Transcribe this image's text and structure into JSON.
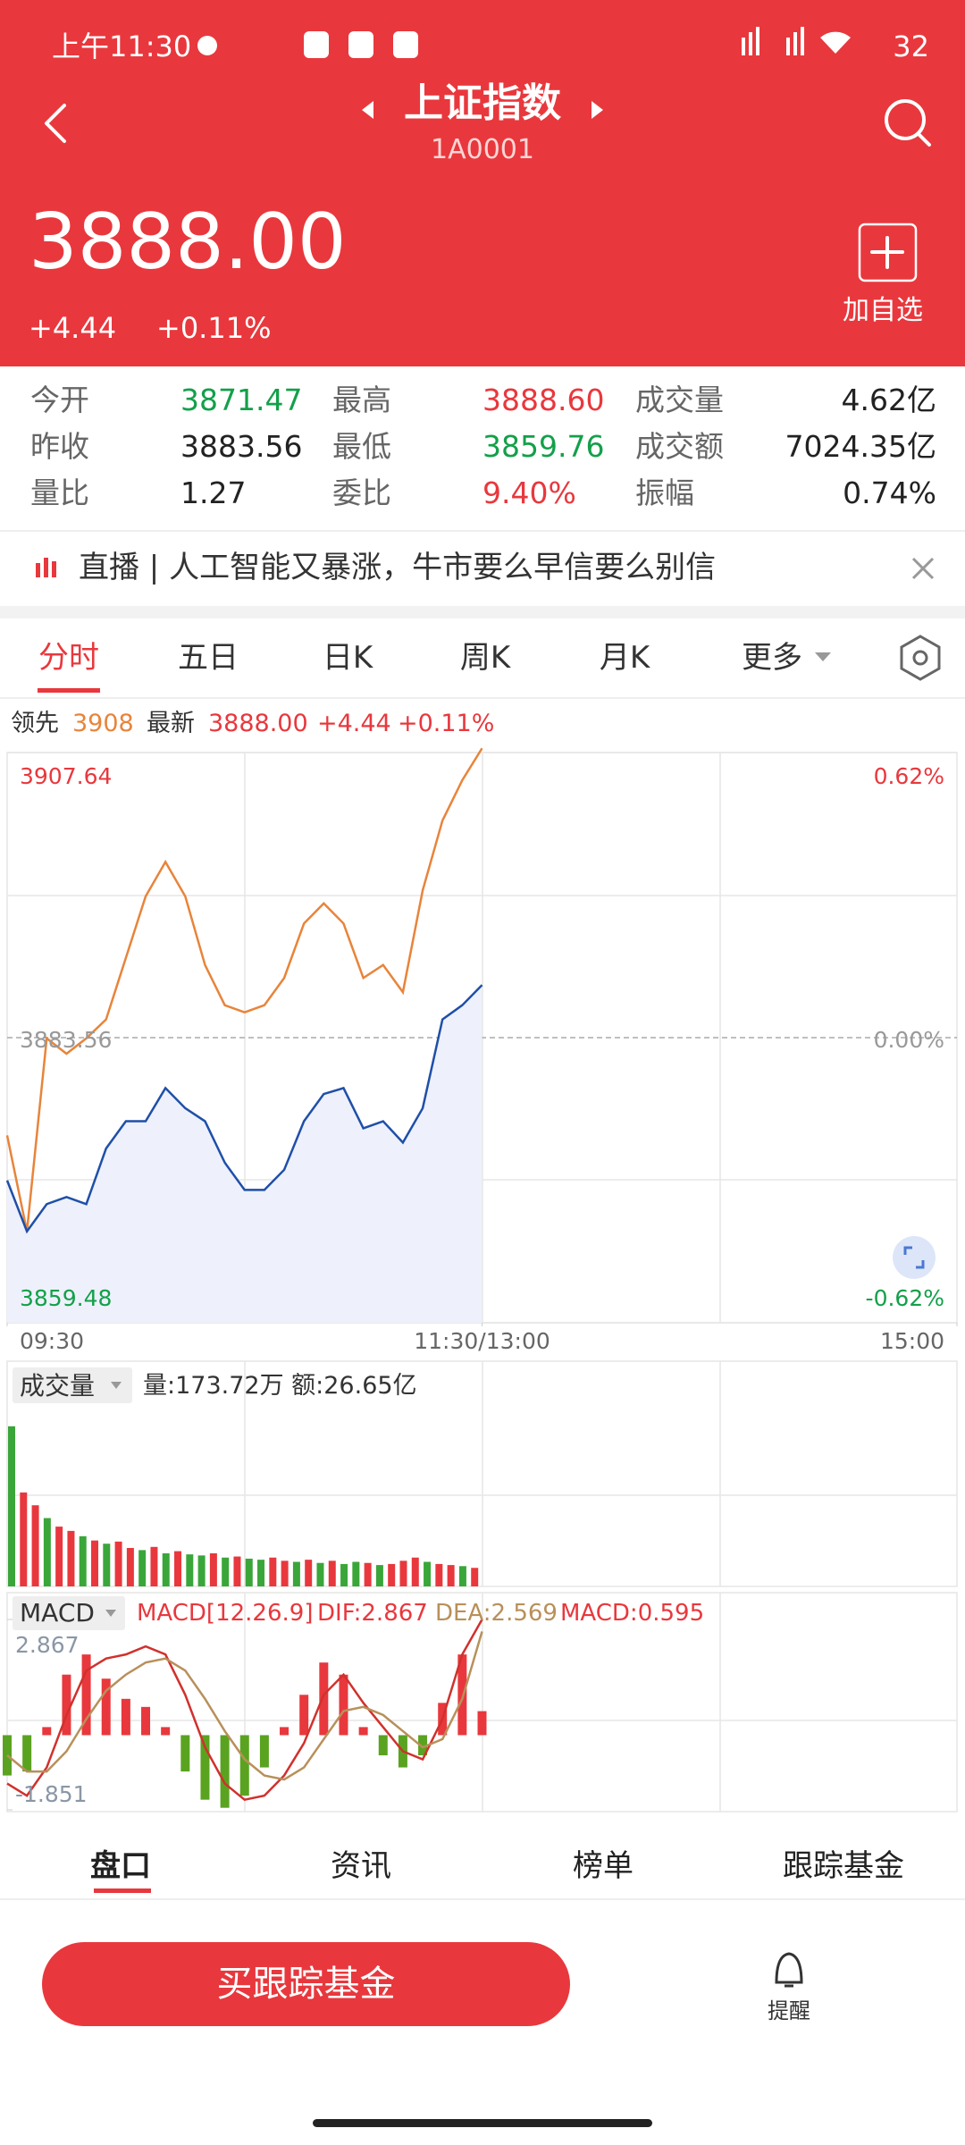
{
  "status_bar": {
    "time": "上午11:30",
    "battery": "32"
  },
  "header": {
    "title": "上证指数",
    "code": "1A0001"
  },
  "quote": {
    "price": "3888.00",
    "change": "+4.44",
    "change_percent": "+0.11%",
    "watch_button": "加自选"
  },
  "stats": [
    [
      "今开",
      "3871.47",
      "最高",
      "3888.60",
      "成交量",
      "4.62亿"
    ],
    [
      "昨收",
      "3883.56",
      "最低",
      "3859.76",
      "成交额",
      "7024.35亿"
    ],
    [
      "量比",
      "1.27",
      "委比",
      "9.40%",
      "振幅",
      "0.74%"
    ]
  ],
  "news": {
    "text": "直播 | 人工智能又暴涨，牛市要么早信要么别信"
  },
  "tabs": [
    "分时",
    "五日",
    "日K",
    "周K",
    "月K",
    "更多"
  ],
  "summary": {
    "leader_value": "3908"
  },
  "volume_panel": {
    "title": "成交量",
    "info": "量:173.72万 额:26.65亿"
  },
  "macd_panel": {
    "title": "MACD",
    "params": "MACD[12.26.9]",
    "dif": "DIF:2.867",
    "dea": "DEA:2.569",
    "macd": "MACD:0.595"
  },
  "chart_data": [
    {
      "type": "line",
      "xlim": [
        0,
        240
      ],
      "xticks": [
        {
          "value": 0,
          "label": "09:30"
        },
        {
          "value": 120,
          "label": "11:30/13:00"
        },
        {
          "value": 240,
          "label": "15:00"
        }
      ],
      "ylim": [
        3859.48,
        3907.64
      ],
      "yticks": [
        3859.48,
        3883.56,
        3907.64
      ],
      "y2lim": [
        -0.62,
        0.62
      ],
      "y2ticks": [
        {
          "value": -0.62,
          "label": "-0.62%"
        },
        {
          "value": 0,
          "label": "0.00%"
        },
        {
          "value": 0.62,
          "label": "0.62%"
        }
      ],
      "x": [
        0,
        5,
        10,
        15,
        20,
        25,
        30,
        35,
        40,
        45,
        50,
        55,
        60,
        65,
        70,
        75,
        80,
        85,
        90,
        95,
        100,
        105,
        110,
        115,
        120
      ],
      "series": [
        {
          "name": "领先",
          "color": "#e8843a",
          "values": [
            3875.3,
            3867.2,
            3883.5,
            3882.2,
            3883.5,
            3885.1,
            3890.3,
            3895.5,
            3898.4,
            3895.5,
            3889.7,
            3886.3,
            3885.7,
            3886.3,
            3888.6,
            3893.2,
            3894.9,
            3893.2,
            3888.6,
            3889.7,
            3887.4,
            3896.0,
            3901.9,
            3905.3,
            3908.0
          ]
        },
        {
          "name": "最新",
          "color": "#1f4fa8",
          "area_color": "#eef1fb",
          "values": [
            3871.5,
            3867.2,
            3869.5,
            3870.1,
            3869.5,
            3874.2,
            3876.5,
            3876.5,
            3879.3,
            3877.6,
            3876.5,
            3873.0,
            3870.7,
            3870.7,
            3872.4,
            3876.5,
            3878.8,
            3879.3,
            3875.9,
            3876.5,
            3874.7,
            3877.6,
            3885.1,
            3886.3,
            3888.0
          ]
        }
      ]
    },
    {
      "type": "bar",
      "xlim": [
        0,
        240
      ],
      "ylim": [
        0,
        1800
      ],
      "x": [
        0,
        3,
        6,
        9,
        12,
        15,
        18,
        21,
        24,
        27,
        30,
        33,
        36,
        39,
        42,
        45,
        48,
        51,
        54,
        57,
        60,
        63,
        66,
        69,
        72,
        75,
        78,
        81,
        84,
        87,
        90,
        93,
        96,
        99,
        102,
        105,
        108,
        111,
        114,
        117
      ],
      "values": [
        1500,
        880,
        760,
        640,
        560,
        520,
        470,
        430,
        400,
        420,
        360,
        340,
        370,
        310,
        330,
        300,
        290,
        310,
        270,
        280,
        260,
        250,
        270,
        240,
        230,
        250,
        220,
        240,
        210,
        230,
        220,
        200,
        210,
        240,
        270,
        230,
        210,
        200,
        190,
        173.72
      ],
      "colors": [
        "#3aa63a",
        "#e8383d",
        "#e8383d",
        "#3aa63a",
        "#e8383d",
        "#e8383d",
        "#3aa63a",
        "#e8383d",
        "#3aa63a",
        "#e8383d",
        "#e8383d",
        "#3aa63a",
        "#e8383d",
        "#3aa63a",
        "#e8383d",
        "#3aa63a",
        "#3aa63a",
        "#e8383d",
        "#3aa63a",
        "#e8383d",
        "#3aa63a",
        "#3aa63a",
        "#e8383d",
        "#e8383d",
        "#3aa63a",
        "#e8383d",
        "#3aa63a",
        "#e8383d",
        "#3aa63a",
        "#3aa63a",
        "#e8383d",
        "#3aa63a",
        "#e8383d",
        "#e8383d",
        "#e8383d",
        "#3aa63a",
        "#e8383d",
        "#e8383d",
        "#3aa63a",
        "#e8383d"
      ]
    },
    {
      "type": "macd",
      "xlim": [
        0,
        240
      ],
      "ylim": [
        -1.851,
        2.867
      ],
      "yticks": [
        -1.851,
        2.867
      ],
      "up_color": "#e8383d",
      "down_color": "#5aa320",
      "x": [
        0,
        5,
        10,
        15,
        20,
        25,
        30,
        35,
        40,
        45,
        50,
        55,
        60,
        65,
        70,
        75,
        80,
        85,
        90,
        95,
        100,
        105,
        110,
        115,
        120
      ],
      "histogram": [
        -1.0,
        -0.9,
        0.2,
        1.5,
        2.0,
        1.4,
        0.9,
        0.7,
        0.2,
        -0.9,
        -1.6,
        -1.8,
        -1.5,
        -0.8,
        0.2,
        1.0,
        1.8,
        1.5,
        0.2,
        -0.5,
        -0.8,
        -0.5,
        0.8,
        2.0,
        0.595
      ],
      "series": [
        {
          "color": "#d0312d",
          "values": [
            -1.2,
            -1.5,
            -0.8,
            0.5,
            1.6,
            1.9,
            2.0,
            2.2,
            2.0,
            1.0,
            -0.3,
            -1.2,
            -1.6,
            -1.5,
            -1.0,
            -0.2,
            1.0,
            1.5,
            0.8,
            0.2,
            -0.4,
            -0.6,
            0.4,
            2.0,
            2.867
          ]
        },
        {
          "color": "#b8905a",
          "values": [
            -0.5,
            -0.9,
            -0.9,
            -0.4,
            0.4,
            1.1,
            1.5,
            1.8,
            1.9,
            1.6,
            0.9,
            0.1,
            -0.6,
            -1.0,
            -1.1,
            -0.8,
            -0.1,
            0.6,
            0.7,
            0.5,
            0.1,
            -0.3,
            -0.1,
            0.9,
            2.569
          ]
        }
      ]
    }
  ],
  "bottom_tabs": [
    "盘口",
    "资讯",
    "榜单",
    "跟踪基金"
  ],
  "actions": {
    "buy_button": "买跟踪基金",
    "remind": "提醒"
  }
}
